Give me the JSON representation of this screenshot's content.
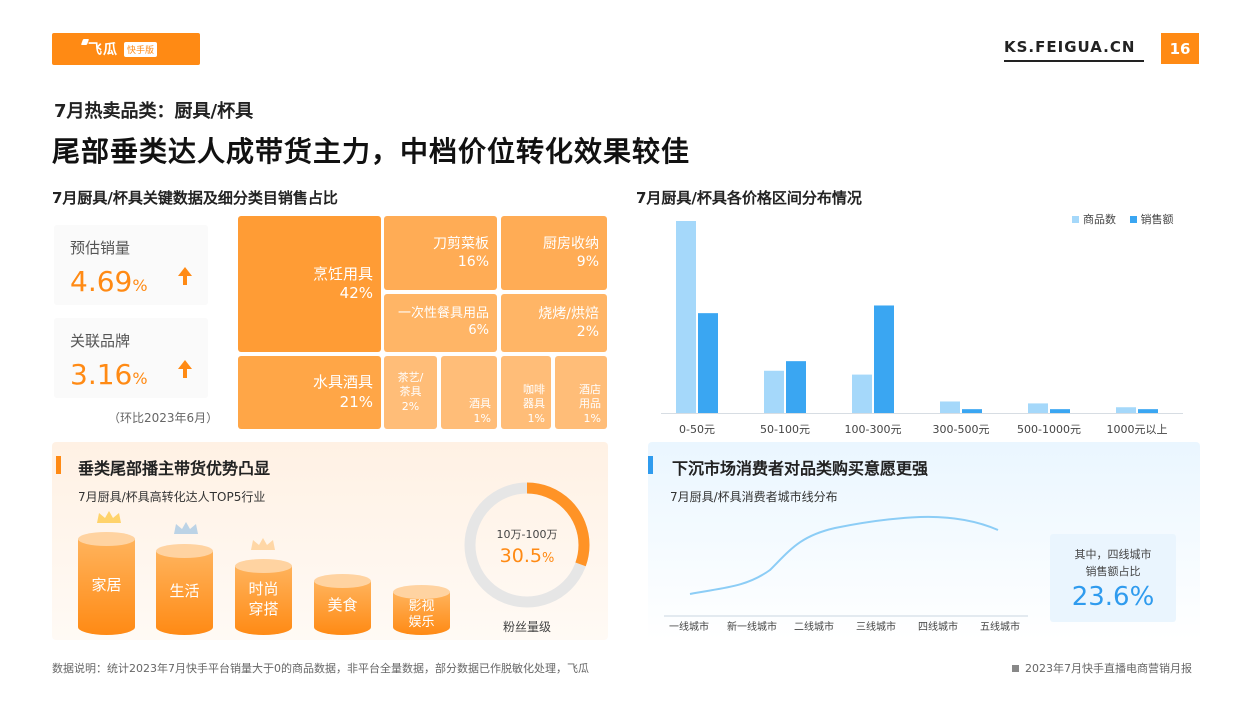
{
  "header": {
    "logo_name": "飞瓜",
    "logo_tag": "快手版",
    "site": "KS.FEIGUA.CN",
    "page_number": "16"
  },
  "kicker": "7月热卖品类：厨具/杯具",
  "headline": "尾部垂类达人成带货主力，中档价位转化效果较佳",
  "left_section": {
    "title": "7月厨具/杯具关键数据及细分类目销售占比",
    "kpis": [
      {
        "label": "预估销量",
        "value": "4.69",
        "unit": "%"
      },
      {
        "label": "关联品牌",
        "value": "3.16",
        "unit": "%"
      }
    ],
    "note": "（环比2023年6月）",
    "treemap": [
      {
        "name": "烹饪用具",
        "pct": "42%"
      },
      {
        "name": "刀剪菜板",
        "pct": "16%"
      },
      {
        "name": "厨房收纳",
        "pct": "9%"
      },
      {
        "name": "一次性餐具用品",
        "pct": "6%"
      },
      {
        "name": "烧烤/烘焙",
        "pct": "2%"
      },
      {
        "name": "水具酒具",
        "pct": "21%"
      },
      {
        "name": "茶艺/茶具",
        "pct": "2%"
      },
      {
        "name": "酒具",
        "pct": "1%"
      },
      {
        "name": "咖啡器具",
        "pct": "1%"
      },
      {
        "name": "酒店用品",
        "pct": "1%"
      }
    ]
  },
  "price_section": {
    "title": "7月厨具/杯具各价格区间分布情况",
    "legend": [
      "商品数",
      "销售额"
    ],
    "colors": {
      "count": "#a5d8fa",
      "sales": "#3aa6f2"
    }
  },
  "chart_data": {
    "type": "bar",
    "categories": [
      "0-50元",
      "50-100元",
      "100-300元",
      "300-500元",
      "500-1000元",
      "1000元以上"
    ],
    "series": [
      {
        "name": "商品数",
        "values": [
          100,
          22,
          20,
          6,
          5,
          3
        ]
      },
      {
        "name": "销售额",
        "values": [
          52,
          27,
          56,
          2,
          2,
          2
        ]
      }
    ],
    "ylim": [
      0,
      100
    ]
  },
  "creator_section": {
    "title": "垂类尾部播主带货优势凸显",
    "subtitle": "7月厨具/杯具高转化达人TOP5行业",
    "industries": [
      "家居",
      "生活",
      "时尚穿搭",
      "美食",
      "影视娱乐"
    ],
    "donut": {
      "range": "10万-100万",
      "value": "30.5",
      "unit": "%",
      "caption": "粉丝量级",
      "fraction": 0.305
    }
  },
  "city_section": {
    "title": "下沉市场消费者对品类购买意愿更强",
    "subtitle": "7月厨具/杯具消费者城市线分布",
    "x_labels": [
      "一线城市",
      "新一线城市",
      "二线城市",
      "三线城市",
      "四线城市",
      "五线城市"
    ],
    "callout_label_1": "其中，四线城市",
    "callout_label_2": "销售额占比",
    "callout_value": "23.6%"
  },
  "footer": {
    "left": "数据说明：统计2023年7月快手平台销量大于0的商品数据，非平台全量数据，部分数据已作脱敏化处理，飞瓜",
    "right": "2023年7月快手直播电商营销月报"
  }
}
